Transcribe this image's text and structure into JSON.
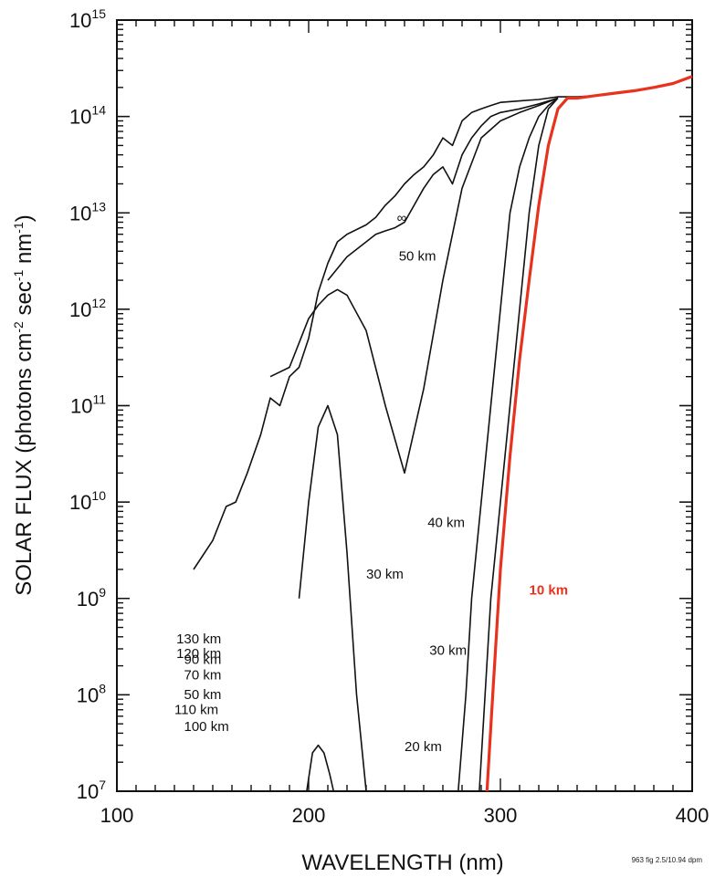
{
  "chart_data": {
    "type": "line",
    "xlabel": "WAVELENGTH (nm)",
    "ylabel": "SOLAR FLUX (photons cm-2 sec-1 nm-1)",
    "ylabel_parts": {
      "pre": "SOLAR FLUX (photons cm",
      "e1": "-2",
      "mid": " sec",
      "e2": "-1",
      "mid2": " nm",
      "e3": "-1",
      "post": ")"
    },
    "xlim": [
      100,
      400
    ],
    "ylim": [
      10000000.0,
      1000000000000000.0
    ],
    "yscale": "log",
    "x_ticks": [
      100,
      200,
      300,
      400
    ],
    "y_ticks": [
      {
        "base": "10",
        "exp": "7"
      },
      {
        "base": "10",
        "exp": "8"
      },
      {
        "base": "10",
        "exp": "9"
      },
      {
        "base": "10",
        "exp": "10"
      },
      {
        "base": "10",
        "exp": "11"
      },
      {
        "base": "10",
        "exp": "12"
      },
      {
        "base": "10",
        "exp": "13"
      },
      {
        "base": "10",
        "exp": "14"
      },
      {
        "base": "10",
        "exp": "15"
      }
    ],
    "series": [
      {
        "name": "∞",
        "color": "#111111",
        "x": [
          140,
          150,
          157,
          162,
          168,
          175,
          180,
          185,
          190,
          195,
          200,
          205,
          210,
          215,
          220,
          230,
          235,
          240,
          245,
          250,
          255,
          260,
          265,
          270,
          275,
          280,
          285,
          290,
          295,
          300,
          310,
          320,
          330,
          340,
          350,
          360,
          370,
          380,
          390,
          400
        ],
        "y": [
          2000000000.0,
          4000000000.0,
          9000000000.0,
          10000000000.0,
          20000000000.0,
          50000000000.0,
          120000000000.0,
          100000000000.0,
          200000000000.0,
          250000000000.0,
          500000000000.0,
          1500000000000.0,
          3000000000000.0,
          5000000000000.0,
          6000000000000.0,
          7500000000000.0,
          9000000000000.0,
          12000000000000.0,
          15000000000000.0,
          20000000000000.0,
          25000000000000.0,
          30000000000000.0,
          40000000000000.0,
          60000000000000.0,
          50000000000000.0,
          90000000000000.0,
          110000000000000.0,
          120000000000000.0,
          130000000000000.0,
          140000000000000.0,
          145000000000000.0,
          150000000000000.0,
          160000000000000.0,
          160000000000000.0,
          165000000000000.0,
          175000000000000.0,
          185000000000000.0,
          200000000000000.0,
          220000000000000.0,
          260000000000000.0
        ]
      },
      {
        "name": "50 km",
        "color": "#111111",
        "x": [
          210,
          220,
          230,
          235,
          240,
          245,
          250,
          255,
          260,
          265,
          270,
          275,
          280,
          285,
          290,
          295,
          300,
          310,
          320,
          330
        ],
        "y": [
          2000000000000.0,
          3500000000000.0,
          5000000000000.0,
          6000000000000.0,
          6500000000000.0,
          7000000000000.0,
          8000000000000.0,
          12000000000000.0,
          18000000000000.0,
          25000000000000.0,
          30000000000000.0,
          20000000000000.0,
          40000000000000.0,
          60000000000000.0,
          80000000000000.0,
          100000000000000.0,
          110000000000000.0,
          120000000000000.0,
          135000000000000.0,
          155000000000000.0
        ]
      },
      {
        "name": "40 km",
        "color": "#111111",
        "x": [
          180,
          190,
          200,
          205,
          210,
          215,
          220,
          230,
          240,
          250,
          260,
          270,
          280,
          290,
          300,
          310,
          320,
          330
        ],
        "y": [
          200000000000.0,
          250000000000.0,
          800000000000.0,
          1100000000000.0,
          1400000000000.0,
          1600000000000.0,
          1400000000000.0,
          600000000000.0,
          100000000000.0,
          20000000000.0,
          150000000000.0,
          2000000000000.0,
          18000000000000.0,
          60000000000000.0,
          90000000000000.0,
          110000000000000.0,
          130000000000000.0,
          155000000000000.0
        ]
      },
      {
        "name": "30 km",
        "color": "#111111",
        "x": [
          195,
          200,
          205,
          210,
          215,
          220,
          225,
          230
        ],
        "y": [
          1000000000.0,
          10000000000.0,
          60000000000.0,
          100000000000.0,
          50000000000.0,
          3000000000.0,
          100000000.0,
          10000000.0
        ]
      },
      {
        "name": "30 km",
        "color": "#111111",
        "x": [
          278,
          282,
          285,
          290,
          295,
          300,
          305,
          310,
          315,
          320,
          325,
          330
        ],
        "y": [
          10000000.0,
          100000000.0,
          1000000000.0,
          10000000000.0,
          100000000000.0,
          1000000000000.0,
          10000000000000.0,
          30000000000000.0,
          60000000000000.0,
          100000000000000.0,
          130000000000000.0,
          155000000000000.0
        ]
      },
      {
        "name": "20 km",
        "color": "#111111",
        "x": [
          199,
          202,
          205,
          208,
          211,
          213
        ],
        "y": [
          10000000.0,
          25000000.0,
          30000000.0,
          25000000.0,
          15000000.0,
          10000000.0
        ]
      },
      {
        "name": "20 km",
        "color": "#111111",
        "x": [
          289,
          292,
          295,
          300,
          305,
          310,
          315,
          320,
          325,
          330
        ],
        "y": [
          10000000.0,
          100000000.0,
          1000000000.0,
          10000000000.0,
          100000000000.0,
          1000000000000.0,
          10000000000000.0,
          50000000000000.0,
          120000000000000.0,
          155000000000000.0
        ]
      },
      {
        "name": "10 km",
        "color": "#e8321e",
        "x": [
          293,
          296,
          300,
          305,
          310,
          315,
          320,
          325,
          330,
          335,
          340,
          350,
          360,
          370,
          380,
          390,
          400
        ],
        "y": [
          10000000.0,
          100000000.0,
          2000000000.0,
          30000000000.0,
          300000000000.0,
          2000000000000.0,
          12000000000000.0,
          50000000000000.0,
          120000000000000.0,
          155000000000000.0,
          155000000000000.0,
          165000000000000.0,
          175000000000000.0,
          185000000000000.0,
          200000000000000.0,
          220000000000000.0,
          260000000000000.0
        ]
      }
    ],
    "annotations": [
      {
        "text": "∞",
        "x": 246,
        "y": 8000000000000.0
      },
      {
        "text": "50 km",
        "x": 247,
        "y": 3200000000000.0
      },
      {
        "text": "40 km",
        "x": 262,
        "y": 5500000000.0
      },
      {
        "text": "30 km",
        "x": 230,
        "y": 1600000000.0
      },
      {
        "text": "30 km",
        "x": 263,
        "y": 260000000.0
      },
      {
        "text": "20 km",
        "x": 250,
        "y": 26000000.0
      },
      {
        "text": "10 km",
        "x": 315,
        "y": 1100000000.0,
        "color": "#e8321e"
      },
      {
        "text": "130 km",
        "x": 131,
        "y": 340000000.0
      },
      {
        "text": "120 km",
        "x": 131,
        "y": 240000000.0
      },
      {
        "text": "90 km",
        "x": 135,
        "y": 210000000.0
      },
      {
        "text": "70 km",
        "x": 135,
        "y": 145000000.0
      },
      {
        "text": "50 km",
        "x": 135,
        "y": 90000000.0
      },
      {
        "text": "110 km",
        "x": 130,
        "y": 63000000.0
      },
      {
        "text": "100 km",
        "x": 135,
        "y": 42000000.0
      }
    ]
  },
  "footnote": "963 fig 2.5/10.94  dpm"
}
